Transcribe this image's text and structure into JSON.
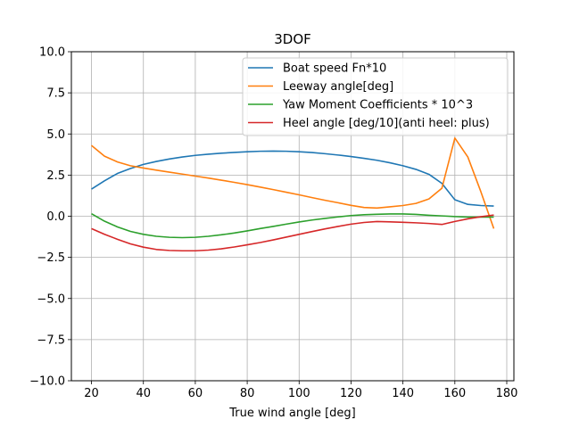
{
  "chart_data": {
    "type": "line",
    "title": "3DOF",
    "xlabel": "True wind angle [deg]",
    "ylabel": "",
    "xlim": [
      12.25,
      182.75
    ],
    "ylim": [
      -10.0,
      10.0
    ],
    "xticks": [
      20,
      40,
      60,
      80,
      100,
      120,
      140,
      160,
      180
    ],
    "yticks": [
      -10.0,
      -7.5,
      -5.0,
      -2.5,
      0.0,
      2.5,
      5.0,
      7.5,
      10.0
    ],
    "xtick_labels": [
      "20",
      "40",
      "60",
      "80",
      "100",
      "120",
      "140",
      "160",
      "180"
    ],
    "ytick_labels": [
      "−10.0",
      "−7.5",
      "−5.0",
      "−2.5",
      "0.0",
      "2.5",
      "5.0",
      "7.5",
      "10.0"
    ],
    "grid": true,
    "legend_position": "top-right",
    "x": [
      20,
      25,
      30,
      35,
      40,
      45,
      50,
      55,
      60,
      65,
      70,
      75,
      80,
      85,
      90,
      95,
      100,
      105,
      110,
      115,
      120,
      125,
      130,
      135,
      140,
      145,
      150,
      155,
      160,
      165,
      170,
      175
    ],
    "series": [
      {
        "name": "Boat speed Fn*10",
        "color": "#1f77b4",
        "values": [
          1.65,
          2.15,
          2.6,
          2.9,
          3.15,
          3.33,
          3.48,
          3.6,
          3.7,
          3.77,
          3.83,
          3.88,
          3.92,
          3.95,
          3.96,
          3.95,
          3.92,
          3.87,
          3.8,
          3.72,
          3.63,
          3.52,
          3.4,
          3.25,
          3.07,
          2.85,
          2.55,
          2.0,
          1.0,
          0.72,
          0.65,
          0.62
        ]
      },
      {
        "name": "Leeway angle[deg]",
        "color": "#ff7f0e",
        "values": [
          4.3,
          3.65,
          3.3,
          3.07,
          2.93,
          2.8,
          2.68,
          2.56,
          2.44,
          2.32,
          2.19,
          2.06,
          1.92,
          1.77,
          1.62,
          1.46,
          1.3,
          1.13,
          0.97,
          0.82,
          0.66,
          0.53,
          0.5,
          0.57,
          0.65,
          0.78,
          1.05,
          1.7,
          4.75,
          3.6,
          1.5,
          -0.75
        ]
      },
      {
        "name": "Yaw Moment Coefficients * 10^3",
        "color": "#2ca02c",
        "values": [
          0.15,
          -0.3,
          -0.65,
          -0.92,
          -1.1,
          -1.22,
          -1.28,
          -1.3,
          -1.28,
          -1.22,
          -1.13,
          -1.02,
          -0.89,
          -0.75,
          -0.62,
          -0.48,
          -0.35,
          -0.23,
          -0.13,
          -0.04,
          0.04,
          0.09,
          0.12,
          0.14,
          0.14,
          0.11,
          0.06,
          0.02,
          -0.02,
          -0.05,
          -0.05,
          -0.05
        ]
      },
      {
        "name": "Heel angle [deg/10](anti heel: plus)",
        "color": "#d62728",
        "values": [
          -0.75,
          -1.1,
          -1.4,
          -1.68,
          -1.88,
          -2.02,
          -2.08,
          -2.1,
          -2.1,
          -2.06,
          -1.98,
          -1.87,
          -1.74,
          -1.6,
          -1.44,
          -1.27,
          -1.1,
          -0.93,
          -0.77,
          -0.62,
          -0.48,
          -0.38,
          -0.32,
          -0.34,
          -0.37,
          -0.4,
          -0.44,
          -0.5,
          -0.32,
          -0.16,
          -0.03,
          0.07
        ]
      }
    ]
  }
}
